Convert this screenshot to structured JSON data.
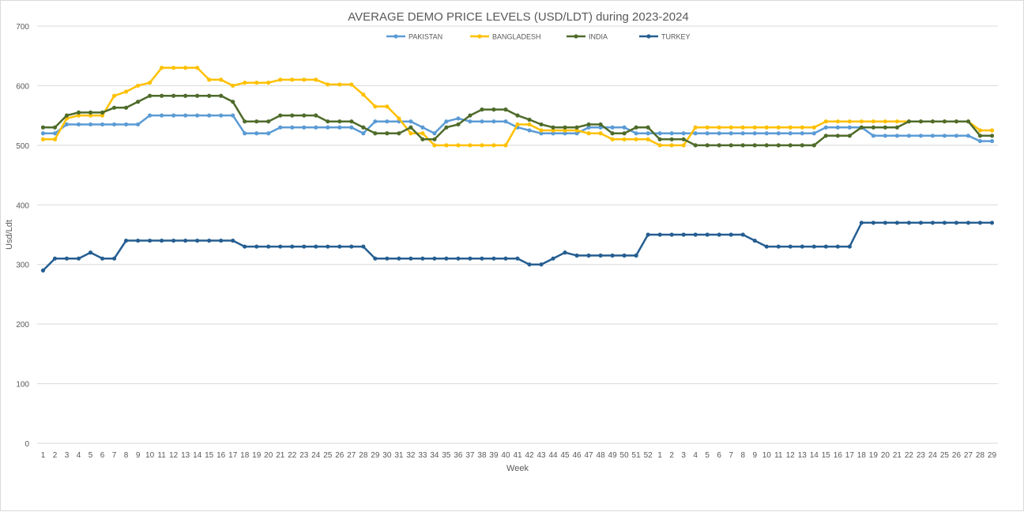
{
  "chart_data": {
    "type": "line",
    "title": "AVERAGE DEMO PRICE LEVELS (USD/LDT) during 2023-2024",
    "xlabel": "Week",
    "ylabel": "Usd/Ldt",
    "ylim": [
      0,
      700
    ],
    "yticks": [
      0,
      100,
      200,
      300,
      400,
      500,
      600,
      700
    ],
    "grid": true,
    "legend_position": "top",
    "categories": [
      "1",
      "2",
      "3",
      "4",
      "5",
      "6",
      "7",
      "8",
      "9",
      "10",
      "11",
      "12",
      "13",
      "14",
      "15",
      "16",
      "17",
      "18",
      "19",
      "20",
      "21",
      "22",
      "23",
      "24",
      "25",
      "26",
      "27",
      "28",
      "29",
      "30",
      "31",
      "32",
      "33",
      "34",
      "35",
      "36",
      "37",
      "38",
      "39",
      "40",
      "41",
      "42",
      "43",
      "44",
      "45",
      "46",
      "47",
      "48",
      "49",
      "50",
      "51",
      "52",
      "1",
      "2",
      "3",
      "4",
      "5",
      "6",
      "7",
      "8",
      "9",
      "10",
      "11",
      "12",
      "13",
      "14",
      "15",
      "16",
      "17",
      "18",
      "19",
      "20",
      "21",
      "22",
      "23",
      "24",
      "25",
      "26",
      "27",
      "28",
      "29"
    ],
    "series": [
      {
        "name": "PAKISTAN",
        "color": "#5b9bd5",
        "values": [
          520,
          520,
          535,
          535,
          535,
          535,
          535,
          535,
          535,
          550,
          550,
          550,
          550,
          550,
          550,
          550,
          550,
          520,
          520,
          520,
          530,
          530,
          530,
          530,
          530,
          530,
          530,
          520,
          540,
          540,
          540,
          540,
          530,
          520,
          540,
          545,
          540,
          540,
          540,
          540,
          530,
          525,
          520,
          520,
          520,
          520,
          530,
          530,
          530,
          530,
          520,
          520,
          520,
          520,
          520,
          520,
          520,
          520,
          520,
          520,
          520,
          520,
          520,
          520,
          520,
          520,
          530,
          530,
          530,
          530,
          516,
          516,
          516,
          516,
          516,
          516,
          516,
          516,
          516,
          507,
          507
        ]
      },
      {
        "name": "BANGLADESH",
        "color": "#ffc000",
        "values": [
          510,
          510,
          545,
          550,
          550,
          550,
          583,
          590,
          600,
          605,
          630,
          630,
          630,
          630,
          610,
          610,
          600,
          605,
          605,
          605,
          610,
          610,
          610,
          610,
          602,
          602,
          602,
          585,
          565,
          565,
          545,
          520,
          520,
          500,
          500,
          500,
          500,
          500,
          500,
          500,
          535,
          535,
          525,
          525,
          525,
          525,
          520,
          520,
          510,
          510,
          510,
          510,
          500,
          500,
          500,
          530,
          530,
          530,
          530,
          530,
          530,
          530,
          530,
          530,
          530,
          530,
          540,
          540,
          540,
          540,
          540,
          540,
          540,
          540,
          540,
          540,
          540,
          540,
          540,
          525,
          525
        ]
      },
      {
        "name": "INDIA",
        "color": "#4e6b2a",
        "values": [
          530,
          530,
          550,
          555,
          555,
          555,
          563,
          563,
          573,
          583,
          583,
          583,
          583,
          583,
          583,
          583,
          573,
          540,
          540,
          540,
          550,
          550,
          550,
          550,
          540,
          540,
          540,
          530,
          520,
          520,
          520,
          530,
          510,
          510,
          530,
          535,
          550,
          560,
          560,
          560,
          550,
          543,
          535,
          530,
          530,
          530,
          535,
          535,
          520,
          520,
          530,
          530,
          510,
          510,
          510,
          500,
          500,
          500,
          500,
          500,
          500,
          500,
          500,
          500,
          500,
          500,
          516,
          516,
          516,
          530,
          530,
          530,
          530,
          540,
          540,
          540,
          540,
          540,
          540,
          516,
          516
        ]
      },
      {
        "name": "TURKEY",
        "color": "#255e91",
        "values": [
          290,
          310,
          310,
          310,
          320,
          310,
          310,
          340,
          340,
          340,
          340,
          340,
          340,
          340,
          340,
          340,
          340,
          330,
          330,
          330,
          330,
          330,
          330,
          330,
          330,
          330,
          330,
          330,
          310,
          310,
          310,
          310,
          310,
          310,
          310,
          310,
          310,
          310,
          310,
          310,
          310,
          300,
          300,
          310,
          320,
          315,
          315,
          315,
          315,
          315,
          315,
          350,
          350,
          350,
          350,
          350,
          350,
          350,
          350,
          350,
          340,
          330,
          330,
          330,
          330,
          330,
          330,
          330,
          330,
          370,
          370,
          370,
          370,
          370,
          370,
          370,
          370,
          370,
          370,
          370,
          370
        ]
      }
    ]
  }
}
